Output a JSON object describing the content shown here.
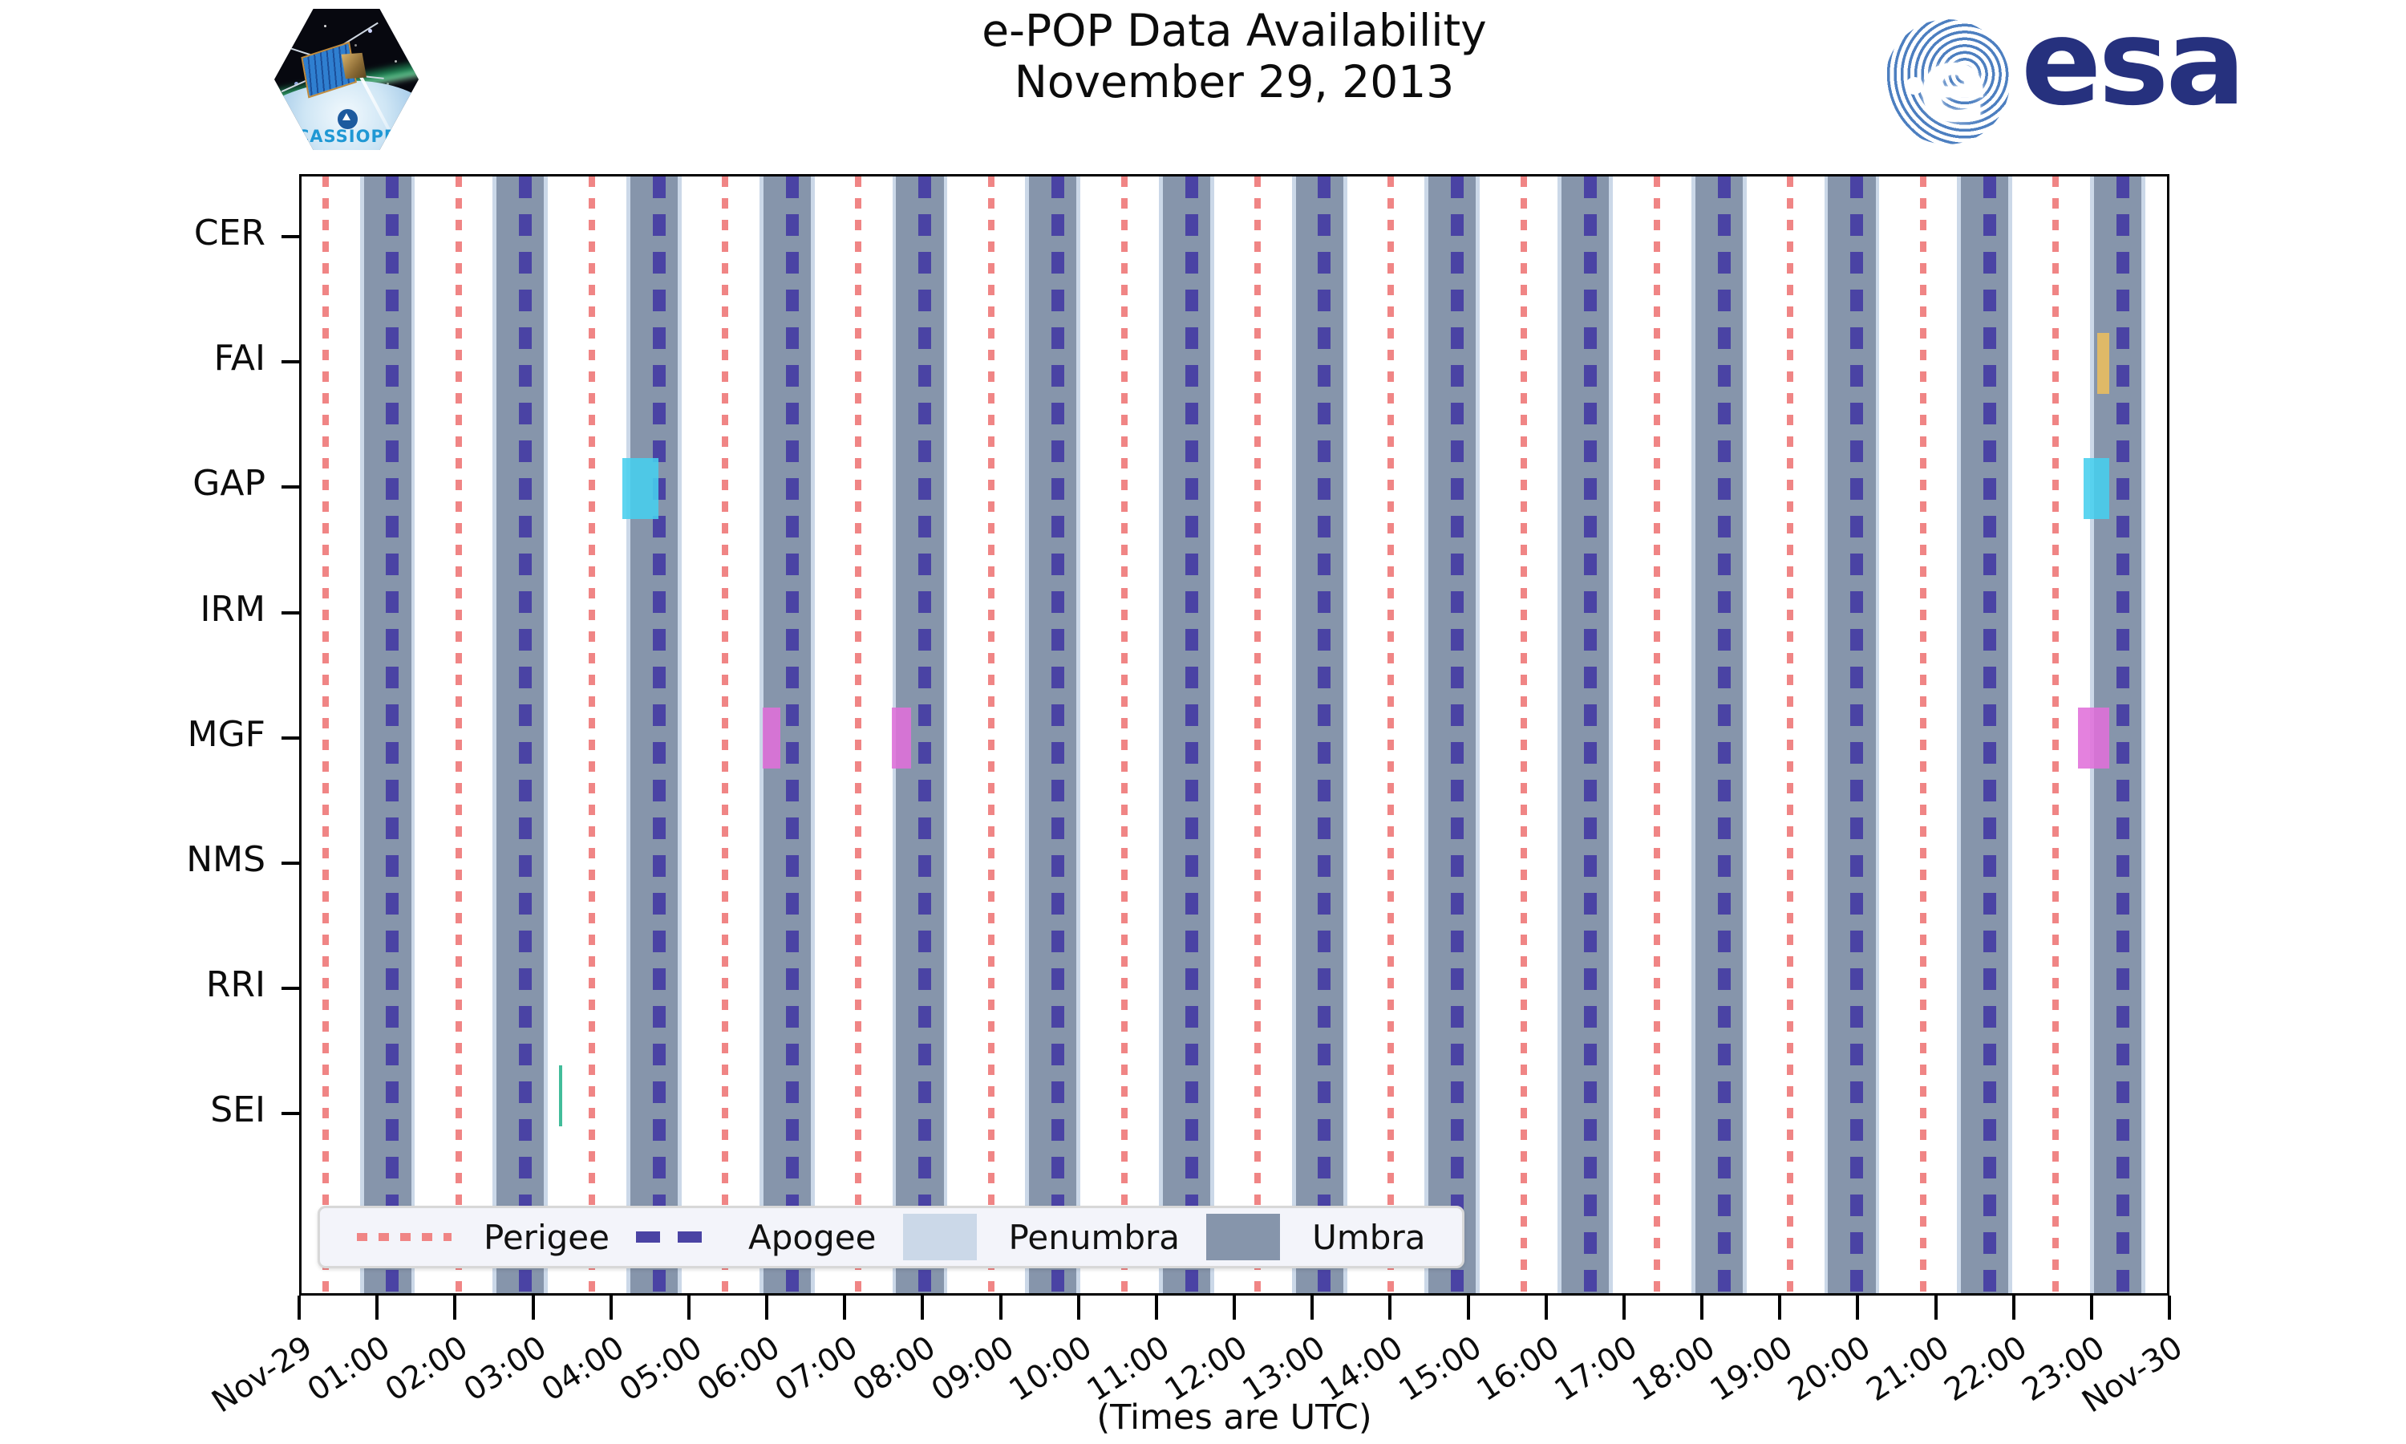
{
  "header": {
    "title_line1": "e-POP Data Availability",
    "title_line2": "November 29, 2013",
    "cassiope_patch": {
      "mission": "CASSIOPE",
      "text": "CASSIOPE"
    },
    "esa_logo": {
      "text": "esa",
      "e_glyph": "e"
    }
  },
  "footer": {
    "xlabel": "(Times are UTC)"
  },
  "chart_data": {
    "type": "timeline",
    "title": "e-POP Data Availability",
    "subtitle": "November 29, 2013",
    "xlabel": "(Times are UTC)",
    "x_axis": {
      "start_label": "Nov-29",
      "end_label": "Nov-30",
      "hours_total": 24,
      "tick_every_hours": 1,
      "tick_labels": [
        "Nov-29",
        "01:00",
        "02:00",
        "03:00",
        "04:00",
        "05:00",
        "06:00",
        "07:00",
        "08:00",
        "09:00",
        "10:00",
        "11:00",
        "12:00",
        "13:00",
        "14:00",
        "15:00",
        "16:00",
        "17:00",
        "18:00",
        "19:00",
        "20:00",
        "21:00",
        "22:00",
        "23:00",
        "Nov-30"
      ],
      "label_rotation_deg": -33
    },
    "instruments": [
      "CER",
      "FAI",
      "GAP",
      "IRM",
      "MGF",
      "NMS",
      "RRI",
      "SEI"
    ],
    "orbit_markers": {
      "perigee_hours": [
        0.31,
        2.02,
        3.74,
        5.45,
        7.16,
        8.87,
        10.59,
        12.3,
        14.01,
        15.72,
        17.44,
        19.15,
        20.86,
        22.57
      ],
      "apogee_hours": [
        1.17,
        2.88,
        4.6,
        6.31,
        8.02,
        9.73,
        11.45,
        13.16,
        14.87,
        16.58,
        18.3,
        20.01,
        21.72,
        23.43
      ],
      "umbra_bands_hours": [
        [
          0.8,
          1.41
        ],
        [
          2.51,
          3.12
        ],
        [
          4.23,
          4.84
        ],
        [
          5.94,
          6.55
        ],
        [
          7.65,
          8.26
        ],
        [
          9.36,
          9.97
        ],
        [
          11.08,
          11.69
        ],
        [
          12.79,
          13.4
        ],
        [
          14.5,
          15.11
        ],
        [
          16.21,
          16.82
        ],
        [
          17.93,
          18.54
        ],
        [
          19.64,
          20.25
        ],
        [
          21.35,
          21.96
        ],
        [
          23.06,
          23.67
        ]
      ],
      "penumbra_edge_width_hours": 0.05
    },
    "availability": [
      {
        "instrument": "FAI",
        "start": "23:06",
        "end": "23:16",
        "start_h": 23.1,
        "end_h": 23.26,
        "color": "#ecbe5d"
      },
      {
        "instrument": "GAP",
        "start": "04:08",
        "end": "04:35",
        "start_h": 4.13,
        "end_h": 4.59,
        "color": "#47cfee"
      },
      {
        "instrument": "GAP",
        "start": "22:56",
        "end": "23:16",
        "start_h": 22.93,
        "end_h": 23.26,
        "color": "#47cfee"
      },
      {
        "instrument": "MGF",
        "start": "05:56",
        "end": "06:10",
        "start_h": 5.93,
        "end_h": 6.16,
        "color": "#e06fd9"
      },
      {
        "instrument": "MGF",
        "start": "07:35",
        "end": "07:50",
        "start_h": 7.59,
        "end_h": 7.84,
        "color": "#e06fd9"
      },
      {
        "instrument": "MGF",
        "start": "22:51",
        "end": "23:16",
        "start_h": 22.85,
        "end_h": 23.26,
        "color": "#e06fd9"
      },
      {
        "instrument": "SEI",
        "start": "03:19",
        "end": "03:21",
        "start_h": 3.31,
        "end_h": 3.35,
        "color": "#28b38c",
        "dy_frac": -0.0142
      }
    ],
    "legend": {
      "items": [
        {
          "label": "Perigee",
          "type": "dotted-line",
          "color": "#f08585"
        },
        {
          "label": "Apogee",
          "type": "dashed-line",
          "color": "#4a43a4"
        },
        {
          "label": "Penumbra",
          "type": "patch",
          "color": "#cbd8e8"
        },
        {
          "label": "Umbra",
          "type": "patch",
          "color": "#8695ab"
        }
      ]
    },
    "colors": {
      "umbra": "#8695ab",
      "penumbra": "#cbd8e8",
      "perigee": "#f08585",
      "apogee": "#4a43a4",
      "axis": "#000000"
    },
    "layout": {
      "grid": false,
      "legend_position": "bottom-left inside axes",
      "bar_height_frac": 0.0545,
      "row_step_frac": 0.1117
    }
  }
}
